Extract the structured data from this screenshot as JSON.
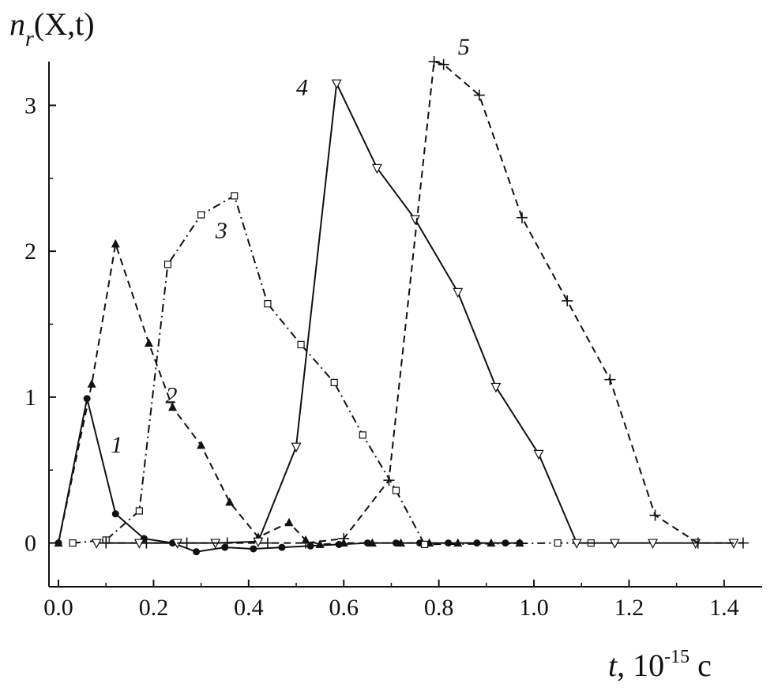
{
  "chart_data": {
    "type": "line",
    "ylabel": {
      "main": "n",
      "sub": "r",
      "args": "(X,t)"
    },
    "xlabel": {
      "var": "t",
      "unit_base": ", 10",
      "unit_exp": "-15",
      "unit_suffix": " c"
    },
    "xlim": [
      -0.02,
      1.48
    ],
    "ylim": [
      -0.3,
      3.3
    ],
    "xticks": [
      "0.0",
      "0.2",
      "0.4",
      "0.6",
      "0.8",
      "1.0",
      "1.2",
      "1.4"
    ],
    "yticks": [
      "0",
      "1",
      "2",
      "3"
    ],
    "grid": false,
    "legend": "none",
    "series": [
      {
        "name": "1",
        "marker": "circle",
        "dash": "solid",
        "label_pos": [
          0.11,
          0.62
        ],
        "x": [
          0.0,
          0.06,
          0.12,
          0.18,
          0.24,
          0.29,
          0.35,
          0.41,
          0.47,
          0.53,
          0.59,
          0.65,
          0.71,
          0.76,
          0.82,
          0.88,
          0.94,
          0.97
        ],
        "y": [
          0.0,
          0.99,
          0.2,
          0.03,
          0.0,
          -0.06,
          -0.03,
          -0.04,
          -0.03,
          -0.02,
          -0.01,
          0.0,
          0.0,
          0.0,
          0.0,
          0.0,
          0.0,
          0.0
        ]
      },
      {
        "name": "2",
        "marker": "triangle-up",
        "dash": "dashed",
        "label_pos": [
          0.225,
          0.96
        ],
        "x": [
          0.0,
          0.07,
          0.12,
          0.19,
          0.24,
          0.3,
          0.36,
          0.42,
          0.485,
          0.52,
          0.55,
          0.6,
          0.66,
          0.72,
          0.78,
          0.84,
          0.91,
          0.97
        ],
        "y": [
          0.0,
          1.09,
          2.05,
          1.37,
          0.93,
          0.67,
          0.28,
          0.04,
          0.14,
          0.02,
          -0.01,
          0.0,
          0.0,
          0.0,
          0.0,
          0.0,
          0.0,
          0.0
        ]
      },
      {
        "name": "3",
        "marker": "square-open",
        "dash": "dashdot",
        "label_pos": [
          0.33,
          2.09
        ],
        "x": [
          0.03,
          0.1,
          0.17,
          0.23,
          0.3,
          0.37,
          0.44,
          0.51,
          0.58,
          0.64,
          0.71,
          0.77,
          1.05,
          1.12
        ],
        "y": [
          0.0,
          0.02,
          0.22,
          1.91,
          2.25,
          2.38,
          1.64,
          1.36,
          1.1,
          0.74,
          0.36,
          -0.01,
          0.0,
          0.0
        ]
      },
      {
        "name": "4",
        "marker": "triangle-down-open",
        "dash": "solid",
        "label_pos": [
          0.5,
          3.07
        ],
        "x": [
          0.08,
          0.17,
          0.25,
          0.33,
          0.42,
          0.5,
          0.585,
          0.67,
          0.75,
          0.84,
          0.92,
          1.01,
          1.09,
          1.17,
          1.25,
          1.34,
          1.42
        ],
        "y": [
          0.0,
          0.0,
          0.0,
          0.0,
          0.01,
          0.66,
          3.15,
          2.57,
          2.22,
          1.72,
          1.07,
          0.61,
          0.0,
          0.0,
          0.0,
          0.0,
          0.0
        ]
      },
      {
        "name": "5",
        "marker": "plus",
        "dash": "dashed",
        "label_pos": [
          0.84,
          3.35
        ],
        "x": [
          0.1,
          0.185,
          0.27,
          0.355,
          0.44,
          0.52,
          0.6,
          0.695,
          0.79,
          0.81,
          0.885,
          0.975,
          1.07,
          1.16,
          1.255,
          1.345,
          1.44
        ],
        "y": [
          0.0,
          0.0,
          0.0,
          0.0,
          0.0,
          0.0,
          0.03,
          0.43,
          3.3,
          3.28,
          3.07,
          2.23,
          1.66,
          1.12,
          0.19,
          0.0,
          0.0
        ]
      }
    ]
  }
}
